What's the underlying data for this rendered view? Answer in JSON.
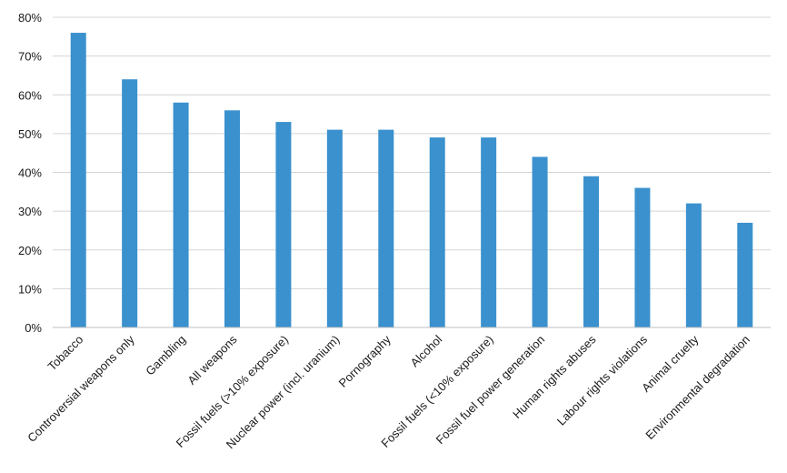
{
  "chart_data": {
    "type": "bar",
    "categories": [
      "Tobacco",
      "Controversial weapons only",
      "Gambling",
      "All weapons",
      "Fossil fuels (>10% exposure)",
      "Nuclear power (incl. uranium)",
      "Pornography",
      "Alcohol",
      "Fossil fuels (<10% exposure)",
      "Fossil fuel power generation",
      "Human rights abuses",
      "Labour rights violations",
      "Animal cruelty",
      "Environmental degradation"
    ],
    "values": [
      76,
      64,
      58,
      56,
      53,
      51,
      51,
      49,
      49,
      44,
      39,
      36,
      32,
      27
    ],
    "ylim": [
      0,
      80
    ],
    "yticks": [
      "0%",
      "10%",
      "20%",
      "30%",
      "40%",
      "50%",
      "60%",
      "70%",
      "80%"
    ],
    "title": "",
    "xlabel": "",
    "ylabel": "",
    "grid": true,
    "bar_color": "#3a91cd",
    "grid_color": "#d4d4d4"
  }
}
